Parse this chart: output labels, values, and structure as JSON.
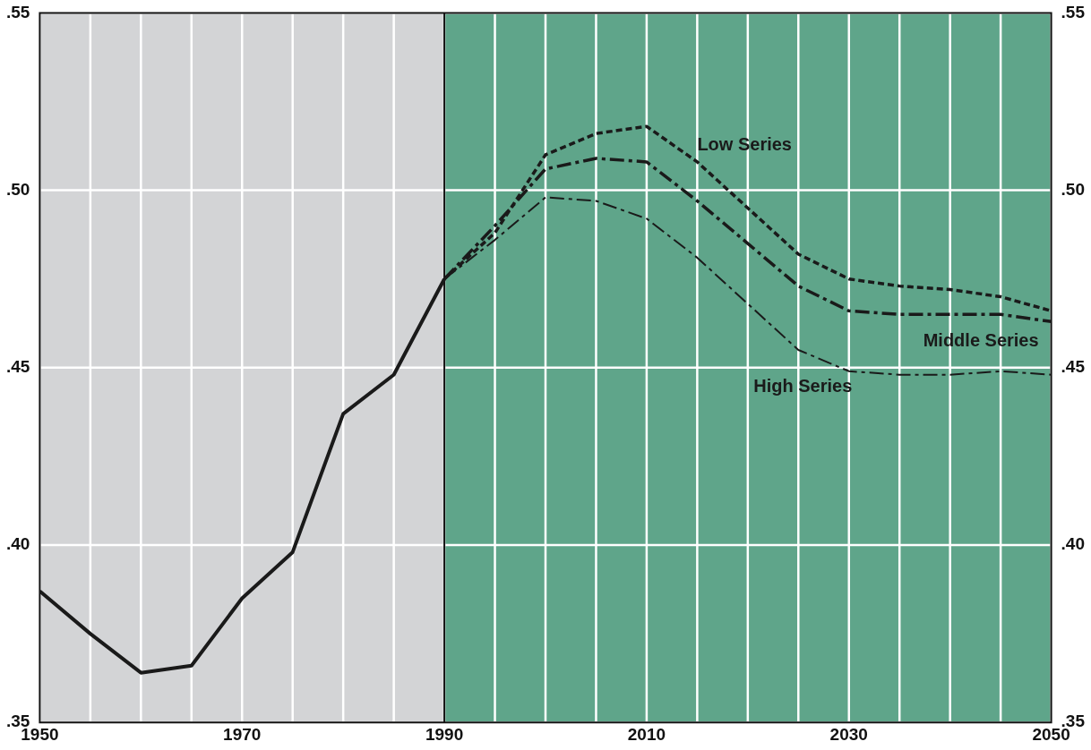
{
  "chart_data": {
    "type": "line",
    "xlim": [
      1950,
      2050
    ],
    "xticks": [
      {
        "value": 1950,
        "label": "1950"
      },
      {
        "value": 1955,
        "label": null
      },
      {
        "value": 1960,
        "label": null
      },
      {
        "value": 1965,
        "label": null
      },
      {
        "value": 1970,
        "label": "1970"
      },
      {
        "value": 1975,
        "label": null
      },
      {
        "value": 1980,
        "label": null
      },
      {
        "value": 1985,
        "label": null
      },
      {
        "value": 1990,
        "label": "1990"
      },
      {
        "value": 1995,
        "label": null
      },
      {
        "value": 2000,
        "label": null
      },
      {
        "value": 2005,
        "label": null
      },
      {
        "value": 2010,
        "label": "2010"
      },
      {
        "value": 2015,
        "label": null
      },
      {
        "value": 2020,
        "label": null
      },
      {
        "value": 2025,
        "label": null
      },
      {
        "value": 2030,
        "label": "2030"
      },
      {
        "value": 2035,
        "label": null
      },
      {
        "value": 2040,
        "label": null
      },
      {
        "value": 2045,
        "label": null
      },
      {
        "value": 2050,
        "label": "2050"
      }
    ],
    "ylim": [
      0.35,
      0.55
    ],
    "yticks": [
      {
        "value": 0.35,
        "label": ".35"
      },
      {
        "value": 0.4,
        "label": ".40"
      },
      {
        "value": 0.45,
        "label": ".45"
      },
      {
        "value": 0.5,
        "label": ".50"
      },
      {
        "value": 0.55,
        "label": ".55"
      }
    ],
    "y2lim": [
      0.35,
      0.55
    ],
    "y2ticks": [
      {
        "value": 0.35,
        "label": ".35"
      },
      {
        "value": 0.4,
        "label": ".40"
      },
      {
        "value": 0.45,
        "label": ".45"
      },
      {
        "value": 0.5,
        "label": ".50"
      },
      {
        "value": 0.55,
        "label": ".55"
      }
    ],
    "ref_lines": [
      {
        "axis": "x",
        "value": 1990,
        "color": "#111111",
        "line_style": "solid"
      }
    ],
    "grid": true,
    "legend": false,
    "marker": "none",
    "bands": [
      {
        "axis": "x",
        "from": 1950,
        "to": 1990,
        "color": "#d3d4d6"
      },
      {
        "axis": "x",
        "from": 1990,
        "to": 2050,
        "color": "#5fa58a"
      }
    ],
    "series": [
      {
        "color": "#1a1a1a",
        "line_style": "solid",
        "x": [
          1950,
          1955,
          1960,
          1965,
          1970,
          1975,
          1980,
          1985,
          1990
        ],
        "values": [
          0.387,
          0.375,
          0.364,
          0.366,
          0.385,
          0.398,
          0.437,
          0.448,
          0.475
        ]
      },
      {
        "name": "Low Series",
        "color": "#1a1a1a",
        "line_style": "dotted",
        "x": [
          1990,
          1995,
          2000,
          2005,
          2010,
          2015,
          2020,
          2025,
          2030,
          2035,
          2040,
          2045,
          2050
        ],
        "values": [
          0.475,
          0.488,
          0.51,
          0.516,
          0.518,
          0.508,
          0.495,
          0.482,
          0.475,
          0.473,
          0.472,
          0.47,
          0.466
        ]
      },
      {
        "name": "Middle Series",
        "color": "#1a1a1a",
        "line_style": "dashed",
        "x": [
          1990,
          1995,
          2000,
          2005,
          2010,
          2015,
          2020,
          2025,
          2030,
          2035,
          2040,
          2045,
          2050
        ],
        "values": [
          0.475,
          0.49,
          0.506,
          0.509,
          0.508,
          0.497,
          0.485,
          0.473,
          0.466,
          0.465,
          0.465,
          0.465,
          0.463
        ]
      },
      {
        "name": "High Series",
        "color": "#1a1a1a",
        "line_style": "dashed",
        "x": [
          1990,
          1995,
          2000,
          2005,
          2010,
          2015,
          2020,
          2025,
          2030,
          2035,
          2040,
          2045,
          2050
        ],
        "values": [
          0.475,
          0.486,
          0.498,
          0.497,
          0.492,
          0.481,
          0.468,
          0.455,
          0.449,
          0.448,
          0.448,
          0.449,
          0.448
        ]
      }
    ]
  }
}
